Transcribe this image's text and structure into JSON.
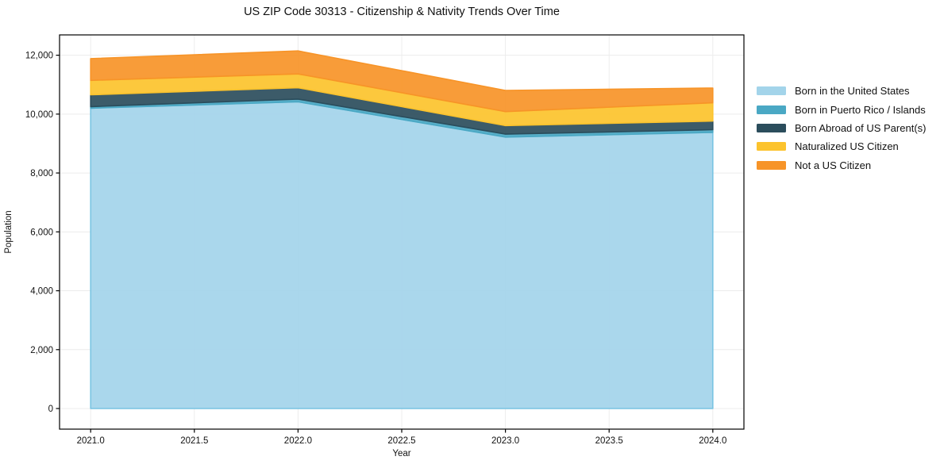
{
  "figure": {
    "background": "#ffffff"
  },
  "chart_data": {
    "type": "area",
    "stacked": true,
    "title": "US ZIP Code 30313 - Citizenship & Nativity Trends Over Time",
    "xlabel": "Year",
    "ylabel": "Population",
    "x": [
      2021,
      2022,
      2023,
      2024
    ],
    "series": [
      {
        "name": "Born in the United States",
        "color": "#a3d4ea",
        "edge": "#79c4e2",
        "values": [
          10200,
          10420,
          9220,
          9380
        ]
      },
      {
        "name": "Born in Puerto Rico / Islands",
        "color": "#4aa8c4",
        "edge": "#4aa8c4",
        "values": [
          55,
          90,
          100,
          90
        ]
      },
      {
        "name": "Born Abroad of US Parent(s)",
        "color": "#2b4d5c",
        "edge": "#2b4d5c",
        "values": [
          400,
          385,
          290,
          295
        ]
      },
      {
        "name": "Naturalized US Citizen",
        "color": "#fcc32d",
        "edge": "#fcc32d",
        "values": [
          490,
          470,
          475,
          620
        ]
      },
      {
        "name": "Not a US Citizen",
        "color": "#f79428",
        "edge": "#f79428",
        "values": [
          740,
          780,
          720,
          500
        ]
      }
    ],
    "totals": [
      11885,
      12145,
      10805,
      10885
    ],
    "x_tick_values": [
      2021.0,
      2021.5,
      2022.0,
      2022.5,
      2023.0,
      2023.5,
      2024.0
    ],
    "x_tick_labels": [
      "2021.0",
      "2021.5",
      "2022.0",
      "2022.5",
      "2023.0",
      "2023.5",
      "2024.0"
    ],
    "y_tick_values": [
      0,
      2000,
      4000,
      6000,
      8000,
      10000,
      12000
    ],
    "y_tick_labels": [
      "0",
      "2,000",
      "4,000",
      "6,000",
      "8,000",
      "10,000",
      "12,000"
    ],
    "xlim": [
      2020.85,
      2024.15
    ],
    "ylim": [
      -700,
      12690
    ],
    "grid": true,
    "grid_color": "#ececec",
    "spine_color": "#000000",
    "tick_label_color": "#111111",
    "legend_position": "right-outside"
  }
}
